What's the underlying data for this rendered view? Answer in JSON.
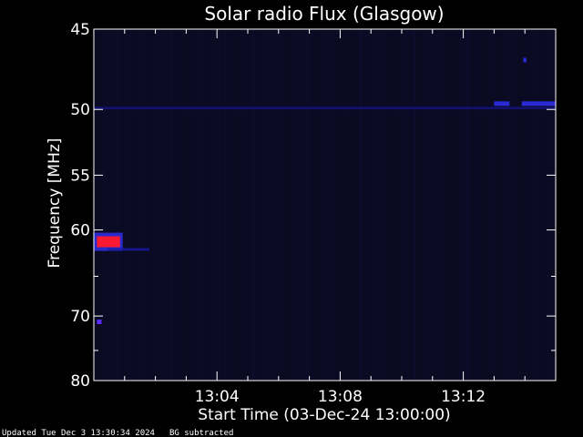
{
  "chart_data": {
    "type": "heatmap",
    "title": "Solar radio Flux (Glasgow)",
    "xlabel": "Start Time (03-Dec-24 13:00:00)",
    "ylabel": "Frequency [MHz]",
    "x_unit": "minutes after 13:00:00",
    "xlim": [
      0,
      15
    ],
    "ylim": [
      45,
      80
    ],
    "y_scale": "reciprocal",
    "x_ticks": [
      {
        "value": 4,
        "label": "13:04"
      },
      {
        "value": 8,
        "label": "13:08"
      },
      {
        "value": 12,
        "label": "13:12"
      }
    ],
    "y_ticks": [
      {
        "value": 45,
        "label": "45"
      },
      {
        "value": 50,
        "label": "50"
      },
      {
        "value": 55,
        "label": "55"
      },
      {
        "value": 60,
        "label": "60"
      },
      {
        "value": 70,
        "label": "70"
      },
      {
        "value": 80,
        "label": "80"
      }
    ],
    "background_color": "#0a0a22",
    "grid": false,
    "features": [
      {
        "t_start": 0.1,
        "t_end": 0.85,
        "freq": 61.2,
        "level": "high",
        "color": "#ff1a33"
      },
      {
        "t_start": 0.45,
        "t_end": 1.8,
        "freq": 62.0,
        "level": "low",
        "color": "#1a1aa6"
      },
      {
        "t_start": 0.0,
        "t_end": 15.0,
        "freq": 49.9,
        "level": "low",
        "color": "#141480"
      },
      {
        "t_start": 13.9,
        "t_end": 15.0,
        "freq": 49.6,
        "level": "medium",
        "color": "#2a2ad6"
      },
      {
        "t_start": 13.0,
        "t_end": 13.5,
        "freq": 49.6,
        "level": "medium",
        "color": "#2a2ad6"
      },
      {
        "t_start": 0.1,
        "t_end": 0.25,
        "freq": 70.8,
        "level": "medium",
        "color": "#5a2aff"
      },
      {
        "t_start": 13.95,
        "t_end": 14.05,
        "freq": 46.8,
        "level": "medium",
        "color": "#2a2ad6"
      }
    ]
  },
  "footer": {
    "updated": "Updated Tue Dec  3 13:30:34 2024",
    "bg_note": "BG subtracted"
  },
  "colors": {
    "background": "#000000",
    "axis": "#ffffff",
    "plot_background": "#0a0a22"
  }
}
